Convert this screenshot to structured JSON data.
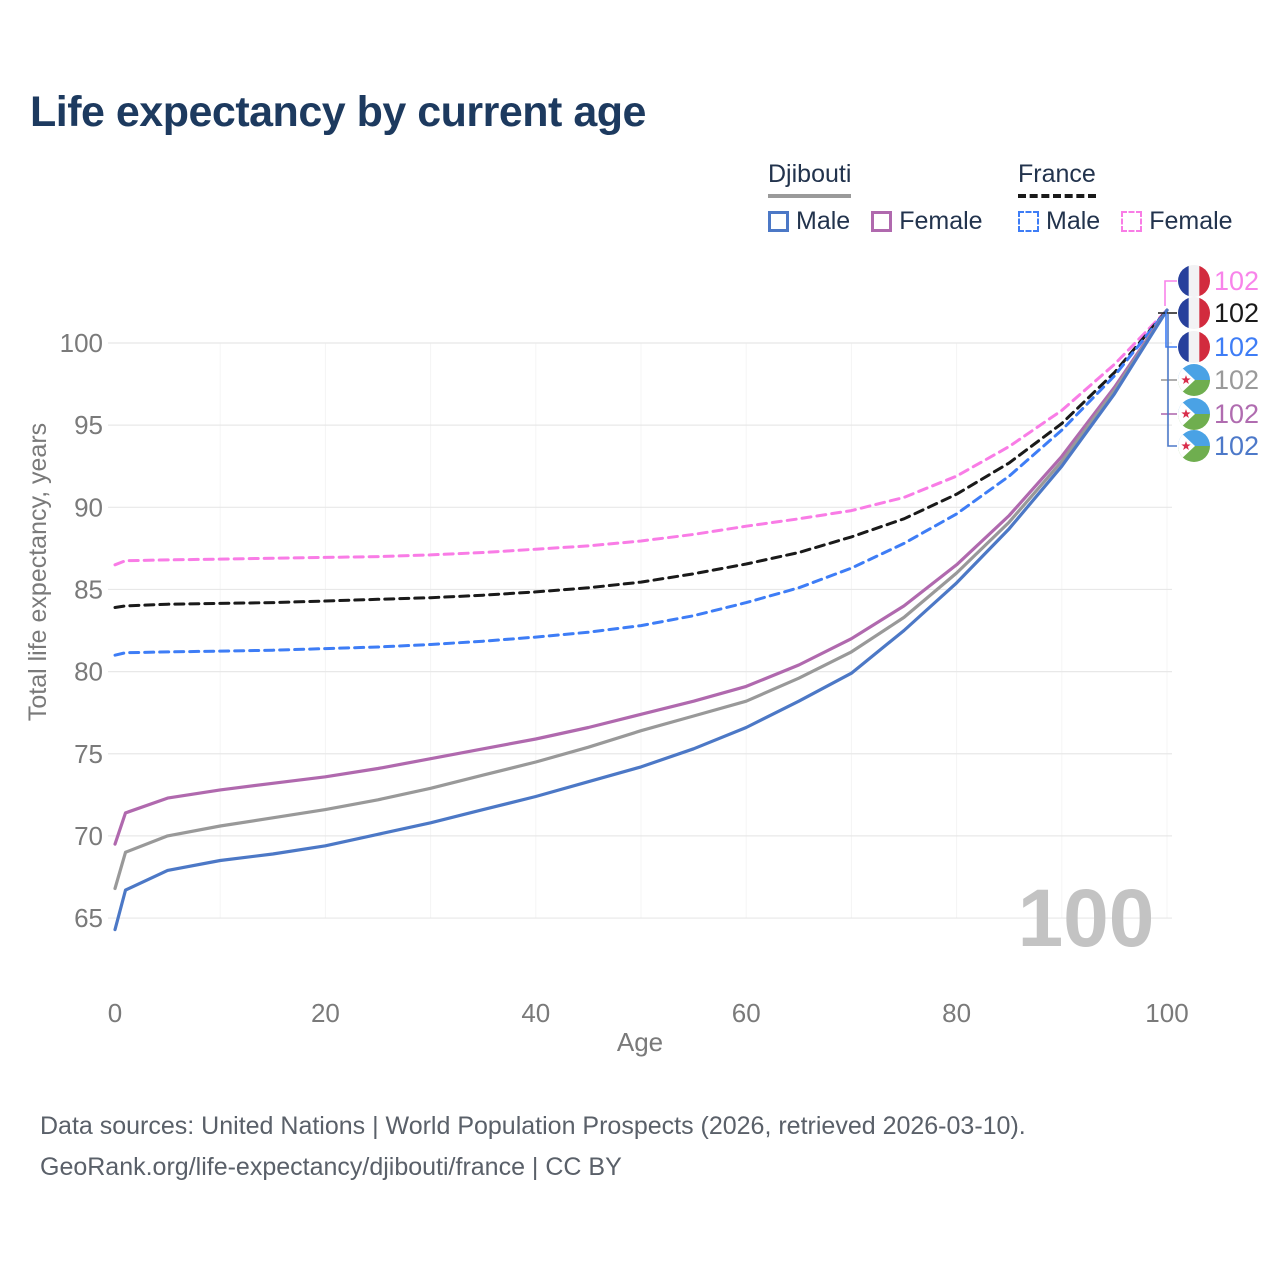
{
  "title": "Life expectancy by current age",
  "watermark": "100",
  "legend": {
    "position": "top-right",
    "groups": [
      {
        "title": "Djibouti",
        "line_style": "solid",
        "underline_color": "#9a9a9a",
        "items": [
          {
            "label": "Male",
            "color": "#4c78c6"
          },
          {
            "label": "Female",
            "color": "#b069ae"
          }
        ]
      },
      {
        "title": "France",
        "line_style": "dashed",
        "underline_color": "#1a1a1a",
        "items": [
          {
            "label": "Male",
            "color": "#3e7df6"
          },
          {
            "label": "Female",
            "color": "#f97ce6"
          }
        ]
      }
    ]
  },
  "footer": {
    "line1": "Data sources: United Nations | World Population Prospects (2026, retrieved 2026-03-10).",
    "line2": "GeoRank.org/life-expectancy/djibouti/france | CC BY"
  },
  "chart_data": {
    "type": "line",
    "title": "Life expectancy by current age",
    "xlabel": "Age",
    "ylabel": "Total life expectancy, years",
    "x_ticks": [
      0,
      20,
      40,
      60,
      80,
      100
    ],
    "y_ticks": [
      65,
      70,
      75,
      80,
      85,
      90,
      95,
      100
    ],
    "xlim": [
      0,
      100
    ],
    "ylim": [
      63,
      103
    ],
    "grid": true,
    "ages": [
      0,
      1,
      5,
      10,
      15,
      20,
      25,
      30,
      35,
      40,
      45,
      50,
      55,
      60,
      65,
      70,
      75,
      80,
      85,
      90,
      95,
      100
    ],
    "series": [
      {
        "name": "France Female",
        "country": "France",
        "sex": "Female",
        "style": "dashed",
        "color": "#f97ce6",
        "values": [
          86.5,
          86.75,
          86.8,
          86.85,
          86.9,
          86.95,
          87.0,
          87.1,
          87.25,
          87.45,
          87.65,
          87.95,
          88.35,
          88.85,
          89.3,
          89.8,
          90.6,
          91.9,
          93.7,
          95.9,
          98.7,
          102
        ]
      },
      {
        "name": "France Both sexes",
        "country": "France",
        "sex": "Both",
        "style": "dashed",
        "color": "#1a1a1a",
        "values": [
          83.9,
          84.0,
          84.1,
          84.15,
          84.2,
          84.3,
          84.4,
          84.5,
          84.65,
          84.85,
          85.1,
          85.45,
          85.95,
          86.55,
          87.25,
          88.2,
          89.3,
          90.8,
          92.7,
          95.1,
          98.2,
          102
        ]
      },
      {
        "name": "France Male",
        "country": "France",
        "sex": "Male",
        "style": "dashed",
        "color": "#3e7df6",
        "values": [
          81.0,
          81.15,
          81.2,
          81.25,
          81.3,
          81.4,
          81.5,
          81.65,
          81.85,
          82.1,
          82.4,
          82.8,
          83.4,
          84.2,
          85.1,
          86.3,
          87.8,
          89.6,
          91.9,
          94.7,
          98.0,
          102
        ]
      },
      {
        "name": "Djibouti Female",
        "country": "Djibouti",
        "sex": "Female",
        "style": "solid",
        "color": "#b069ae",
        "values": [
          69.5,
          71.4,
          72.3,
          72.8,
          73.2,
          73.6,
          74.1,
          74.7,
          75.3,
          75.9,
          76.6,
          77.4,
          78.2,
          79.1,
          80.4,
          82.0,
          84.0,
          86.5,
          89.5,
          93.1,
          97.3,
          102
        ]
      },
      {
        "name": "Djibouti Both sexes",
        "country": "Djibouti",
        "sex": "Both",
        "style": "solid",
        "color": "#999999",
        "values": [
          66.8,
          69.0,
          70.0,
          70.6,
          71.1,
          71.6,
          72.2,
          72.9,
          73.7,
          74.5,
          75.4,
          76.4,
          77.3,
          78.2,
          79.6,
          81.2,
          83.3,
          86.0,
          89.1,
          92.8,
          97.1,
          102
        ]
      },
      {
        "name": "Djibouti Male",
        "country": "Djibouti",
        "sex": "Male",
        "style": "solid",
        "color": "#4c78c6",
        "values": [
          64.3,
          66.7,
          67.9,
          68.5,
          68.9,
          69.4,
          70.1,
          70.8,
          71.6,
          72.4,
          73.3,
          74.2,
          75.3,
          76.6,
          78.2,
          79.9,
          82.5,
          85.4,
          88.7,
          92.5,
          96.9,
          102
        ]
      }
    ],
    "end_labels": [
      {
        "flag": "France",
        "value": "102",
        "color": "#f884ea"
      },
      {
        "flag": "France",
        "value": "102",
        "color": "#1a1a1a"
      },
      {
        "flag": "France",
        "value": "102",
        "color": "#3e7df6"
      },
      {
        "flag": "Djibouti",
        "value": "102",
        "color": "#9a9a9a"
      },
      {
        "flag": "Djibouti",
        "value": "102",
        "color": "#b06cb0"
      },
      {
        "flag": "Djibouti",
        "value": "102",
        "color": "#4d79c9"
      }
    ]
  }
}
